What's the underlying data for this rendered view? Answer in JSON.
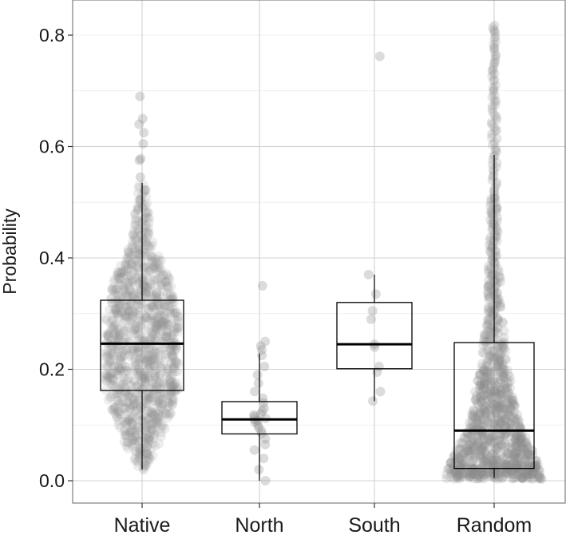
{
  "chart_data": {
    "type": "box",
    "title": "",
    "xlabel": "",
    "ylabel": "Probability",
    "ylim": [
      -0.04,
      0.86
    ],
    "yticks": [
      0.0,
      0.2,
      0.4,
      0.6,
      0.8
    ],
    "ytick_labels": [
      "0.0",
      "0.2",
      "0.4",
      "0.6",
      "0.8"
    ],
    "grid": true,
    "legend": "none",
    "point_color": "#8c8c8c",
    "box_color": "#000000",
    "categories": [
      "Native",
      "North",
      "South",
      "Random"
    ],
    "boxes": [
      {
        "category": "Native",
        "whisker_low": 0.02,
        "q1": 0.162,
        "median": 0.246,
        "q3": 0.324,
        "whisker_high": 0.535
      },
      {
        "category": "North",
        "whisker_low": 0.0,
        "q1": 0.084,
        "median": 0.11,
        "q3": 0.142,
        "whisker_high": 0.228
      },
      {
        "category": "South",
        "whisker_low": 0.143,
        "q1": 0.201,
        "median": 0.245,
        "q3": 0.32,
        "whisker_high": 0.37
      },
      {
        "category": "Random",
        "whisker_low": 0.005,
        "q1": 0.022,
        "median": 0.09,
        "q3": 0.248,
        "whisker_high": 0.585
      }
    ],
    "points": {
      "North": [
        0.0,
        0.02,
        0.04,
        0.055,
        0.065,
        0.075,
        0.085,
        0.09,
        0.095,
        0.1,
        0.105,
        0.108,
        0.11,
        0.112,
        0.115,
        0.118,
        0.12,
        0.125,
        0.13,
        0.14,
        0.148,
        0.16,
        0.175,
        0.19,
        0.205,
        0.225,
        0.235,
        0.242,
        0.25,
        0.35
      ],
      "South": [
        0.143,
        0.16,
        0.195,
        0.205,
        0.24,
        0.245,
        0.29,
        0.305,
        0.335,
        0.37,
        0.762
      ],
      "Native_outliers": [
        0.545,
        0.575,
        0.578,
        0.605,
        0.625,
        0.64,
        0.65,
        0.69
      ]
    }
  }
}
